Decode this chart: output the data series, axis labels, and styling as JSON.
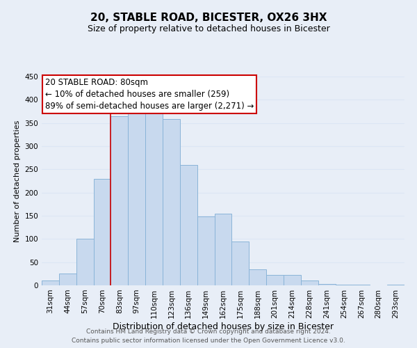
{
  "title": "20, STABLE ROAD, BICESTER, OX26 3HX",
  "subtitle": "Size of property relative to detached houses in Bicester",
  "xlabel": "Distribution of detached houses by size in Bicester",
  "ylabel": "Number of detached properties",
  "footer_line1": "Contains HM Land Registry data © Crown copyright and database right 2024.",
  "footer_line2": "Contains public sector information licensed under the Open Government Licence v3.0.",
  "categories": [
    "31sqm",
    "44sqm",
    "57sqm",
    "70sqm",
    "83sqm",
    "97sqm",
    "110sqm",
    "123sqm",
    "136sqm",
    "149sqm",
    "162sqm",
    "175sqm",
    "188sqm",
    "201sqm",
    "214sqm",
    "228sqm",
    "241sqm",
    "254sqm",
    "267sqm",
    "280sqm",
    "293sqm"
  ],
  "values": [
    10,
    25,
    100,
    230,
    365,
    370,
    375,
    358,
    260,
    148,
    155,
    95,
    34,
    22,
    22,
    10,
    3,
    1,
    1,
    0,
    1
  ],
  "bar_color": "#c8d9ee",
  "bar_edge_color": "#8ab4d8",
  "highlight_index": 4,
  "highlight_line_color": "#cc0000",
  "ann_line1": "20 STABLE ROAD: 80sqm",
  "ann_line2": "← 10% of detached houses are smaller (259)",
  "ann_line3": "89% of semi-detached houses are larger (2,271) →",
  "ann_box_edge_color": "#cc0000",
  "ann_box_face_color": "#ffffff",
  "ann_fontsize": 8.5,
  "ylim": [
    0,
    450
  ],
  "yticks": [
    0,
    50,
    100,
    150,
    200,
    250,
    300,
    350,
    400,
    450
  ],
  "grid_color": "#dce6f5",
  "background_color": "#e8eef7",
  "title_fontsize": 11,
  "subtitle_fontsize": 9,
  "xlabel_fontsize": 9,
  "ylabel_fontsize": 8,
  "tick_fontsize": 7.5,
  "footer_fontsize": 6.5
}
